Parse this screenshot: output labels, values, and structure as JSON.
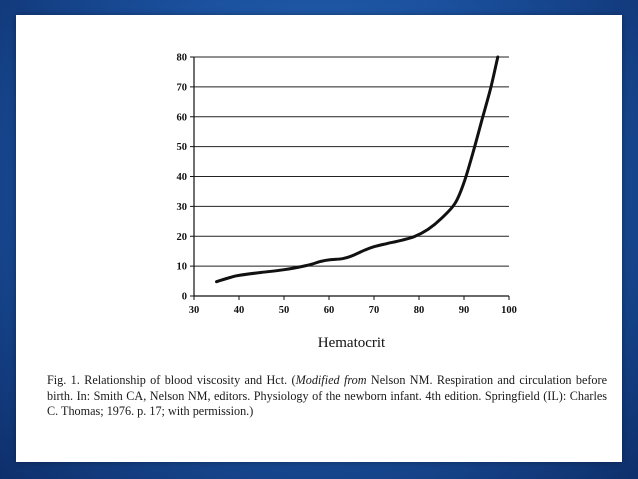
{
  "caption": {
    "lead": "Fig. 1. Relationship of blood viscosity and Hct. (",
    "italic": "Modified from",
    "rest": " Nelson NM. Respiration and circulation before birth. In: Smith CA, Nelson NM, editors. Physiology of the newborn infant. 4th edition. Springfield (IL): Charles C. Thomas; 1976. p. 17; with permission.)"
  },
  "chart_data": {
    "type": "line",
    "title": "",
    "xlabel": "Hematocrit",
    "ylabel": "",
    "xlim": [
      30,
      100
    ],
    "ylim": [
      0,
      80
    ],
    "x_ticks": [
      30,
      40,
      50,
      60,
      70,
      80,
      90,
      100
    ],
    "y_ticks": [
      0,
      10,
      20,
      30,
      40,
      50,
      60,
      70,
      80
    ],
    "grid": "horizontal",
    "legend": "none",
    "series": [
      {
        "color": "#111111",
        "points": [
          [
            35,
            4.8
          ],
          [
            38,
            6.2
          ],
          [
            40,
            6.9
          ],
          [
            45,
            7.9
          ],
          [
            50,
            8.8
          ],
          [
            55,
            10.2
          ],
          [
            58,
            11.5
          ],
          [
            60,
            12.1
          ],
          [
            63,
            12.5
          ],
          [
            65,
            13.4
          ],
          [
            68,
            15.4
          ],
          [
            70,
            16.5
          ],
          [
            73,
            17.6
          ],
          [
            76,
            18.6
          ],
          [
            79,
            19.9
          ],
          [
            82,
            22.3
          ],
          [
            85,
            26
          ],
          [
            88,
            31
          ],
          [
            90,
            38
          ],
          [
            92,
            48
          ],
          [
            94,
            59
          ],
          [
            96,
            70
          ],
          [
            97.5,
            80
          ]
        ]
      }
    ]
  }
}
